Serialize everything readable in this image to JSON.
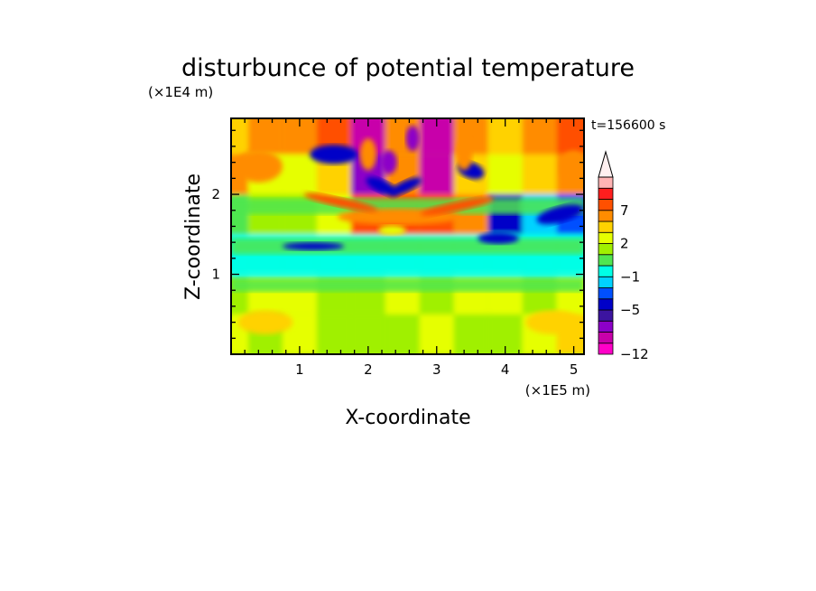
{
  "chart_data": {
    "type": "heatmap",
    "title": "disturbunce of potential temperature",
    "xlabel": "X-coordinate",
    "ylabel": "Z-coordinate",
    "x_unit_label": "(×1E5 m)",
    "y_unit_label": "(×1E4 m)",
    "time_label": "t=156600 s",
    "xlim": [
      0,
      5.15
    ],
    "ylim": [
      0,
      2.95
    ],
    "xticks": [
      1,
      2,
      3,
      4,
      5
    ],
    "yticks": [
      1,
      2
    ],
    "colorbar": {
      "levels": [
        -12,
        -10,
        -8,
        -7,
        -5,
        -3,
        -2,
        -1,
        0,
        1,
        2,
        3,
        5,
        7,
        9,
        11
      ],
      "labeled_ticks": [
        {
          "label": "7",
          "value": 7
        },
        {
          "label": "2",
          "value": 2
        },
        {
          "label": "−1",
          "value": -1
        },
        {
          "label": "−5",
          "value": -5
        },
        {
          "label": "−12",
          "value": -12
        }
      ],
      "colors": [
        "#ff00c8",
        "#c800aa",
        "#8c00c8",
        "#3c14a0",
        "#0000c8",
        "#0050ff",
        "#00d2ff",
        "#00ffe6",
        "#50e650",
        "#a0f000",
        "#e6ff00",
        "#ffd200",
        "#ff8c00",
        "#ff5000",
        "#ff1e1e",
        "#ffb4b4",
        "#fff0f0"
      ],
      "extend_max": true
    },
    "field_description_values": {
      "grid_x": [
        0,
        0.5,
        1,
        1.5,
        2,
        2.5,
        3,
        3.5,
        4,
        4.5,
        5
      ],
      "grid_z": [
        0.25,
        0.75,
        1.25,
        1.75,
        2.25,
        2.75
      ],
      "rows": [
        [
          2,
          1,
          2,
          1,
          1,
          1,
          2,
          1,
          1,
          2,
          3
        ],
        [
          1,
          2,
          2,
          1,
          1,
          2,
          1,
          2,
          2,
          1,
          2
        ],
        [
          -1,
          -1,
          -1,
          -1,
          -1,
          -1,
          -1,
          -1,
          -1,
          -1,
          -1
        ],
        [
          0,
          1,
          1,
          2,
          6,
          7,
          6,
          5,
          -5,
          -2,
          -3
        ],
        [
          4,
          2,
          2,
          3,
          -8,
          4,
          -10,
          3,
          2,
          3,
          5
        ],
        [
          3,
          4,
          5,
          6,
          -10,
          5,
          -10,
          4,
          3,
          4,
          6
        ]
      ]
    }
  }
}
